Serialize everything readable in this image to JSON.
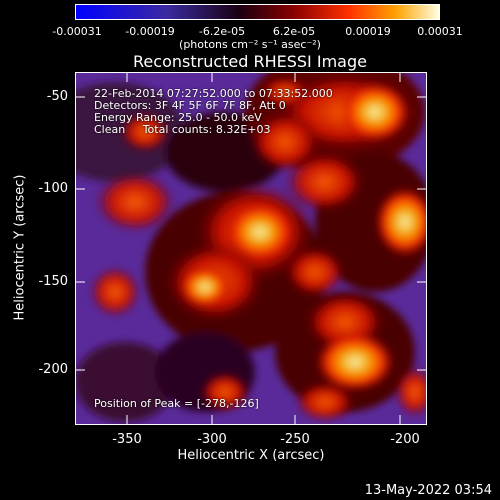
{
  "colorbar": {
    "ticks": [
      "-0.00031",
      "-0.00019",
      "-6.2e-05",
      "6.2e-05",
      "0.00019",
      "0.00031"
    ],
    "units": "(photons cm⁻² s⁻¹ asec⁻²)"
  },
  "title": "Reconstructed RHESSI Image",
  "overlay": {
    "line1": "22-Feb-2014 07:27:52.000 to 07:33:52.000",
    "line2": "Detectors: 3F 4F 5F 6F 7F 8F, Att 0",
    "line3": "Energy Range: 25.0 - 50.0 keV",
    "line4": "Clean     Total counts: 8.32E+03",
    "peak": "Position of Peak = [-278,-126]"
  },
  "axes": {
    "xlabel": "Heliocentric X (arcsec)",
    "ylabel": "Heliocentric Y (arcsec)",
    "xticks": [
      "-350",
      "-300",
      "-250",
      "-200"
    ],
    "yticks": [
      "-50",
      "-100",
      "-150",
      "-200"
    ]
  },
  "footer": "13-May-2022 03:54"
}
